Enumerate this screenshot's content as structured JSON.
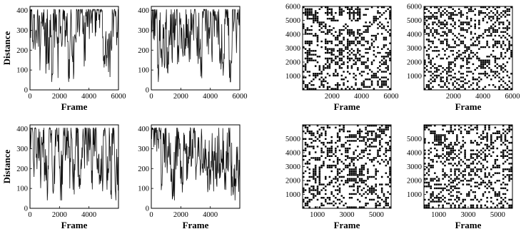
{
  "chart_data": [
    {
      "type": "line",
      "xlabel": "Frame",
      "ylabel": "Distance",
      "xlim": [
        0,
        6000
      ],
      "ylim": [
        0,
        420
      ],
      "xticks": [
        0,
        2000,
        4000,
        6000
      ],
      "yticks": [
        0,
        100,
        200,
        300,
        400
      ],
      "series": [
        {
          "x": [
            0,
            100,
            200,
            300,
            400,
            500,
            600,
            700,
            800,
            900,
            1000,
            1100,
            1200,
            1300,
            1400,
            1500,
            1600,
            1700,
            1800,
            1900,
            2000,
            2100,
            2200,
            2300,
            2400,
            2500,
            2600,
            2700,
            2800,
            2900,
            3000,
            3100,
            3200,
            3300,
            3400,
            3500,
            3600,
            3700,
            3800,
            3900,
            4000,
            4100,
            4200,
            4300,
            4400,
            4500,
            4600,
            4700,
            4800,
            4900,
            5000,
            5100,
            5200,
            5300,
            5400,
            5500,
            5600,
            5700,
            5800,
            5900,
            6000
          ],
          "values": [
            400,
            395,
            250,
            380,
            300,
            395,
            340,
            200,
            390,
            390,
            220,
            160,
            330,
            100,
            380,
            80,
            300,
            340,
            380,
            60,
            390,
            320,
            260,
            400,
            300,
            340,
            70,
            200,
            380,
            140,
            220,
            260,
            395,
            400,
            400,
            390,
            280,
            200,
            370,
            395,
            395,
            400,
            400,
            398,
            395,
            390,
            400,
            380,
            390,
            400,
            170,
            190,
            175,
            170,
            180,
            230,
            390,
            400,
            398,
            290,
            395
          ]
        }
      ]
    },
    {
      "type": "line",
      "xlabel": "",
      "ylabel": "",
      "xlim": [
        0,
        6000
      ],
      "ylim": [
        0,
        420
      ],
      "xticks": [
        0,
        2000,
        4000,
        6000
      ],
      "yticks": [
        0,
        100,
        200,
        300,
        400
      ],
      "series": [
        {
          "x": [
            0,
            100,
            200,
            300,
            400,
            500,
            600,
            700,
            800,
            900,
            1000,
            1100,
            1200,
            1300,
            1400,
            1500,
            1600,
            1700,
            1800,
            1900,
            2000,
            2100,
            2200,
            2300,
            2400,
            2500,
            2600,
            2700,
            2800,
            2900,
            3000,
            3100,
            3200,
            3300,
            3400,
            3500,
            3600,
            3700,
            3800,
            3900,
            4000,
            4100,
            4200,
            4300,
            4400,
            4500,
            4600,
            4700,
            4800,
            4900,
            5000,
            5100,
            5200,
            5300,
            5400,
            5500,
            5600,
            5700,
            5800,
            5900,
            6000
          ],
          "values": [
            395,
            400,
            250,
            380,
            300,
            80,
            390,
            200,
            330,
            110,
            360,
            90,
            300,
            380,
            160,
            390,
            250,
            395,
            210,
            300,
            360,
            200,
            330,
            260,
            380,
            240,
            270,
            300,
            340,
            380,
            390,
            170,
            300,
            210,
            100,
            395,
            400,
            340,
            240,
            300,
            395,
            180,
            390,
            395,
            380,
            395,
            300,
            210,
            160,
            120,
            330,
            395,
            390,
            60,
            130,
            400,
            330,
            395,
            300,
            390,
            385
          ]
        }
      ]
    },
    {
      "type": "line",
      "xlabel": "Frame",
      "ylabel": "Distance",
      "xlim": [
        0,
        6000
      ],
      "ylim": [
        0,
        420
      ],
      "xticks": [
        0,
        2000,
        4000
      ],
      "yticks": [
        0,
        100,
        200,
        300,
        400
      ],
      "series": [
        {
          "x": [
            0,
            100,
            200,
            300,
            400,
            500,
            600,
            700,
            800,
            900,
            1000,
            1100,
            1200,
            1300,
            1400,
            1500,
            1600,
            1700,
            1800,
            1900,
            2000,
            2100,
            2200,
            2300,
            2400,
            2500,
            2600,
            2700,
            2800,
            2900,
            3000,
            3100,
            3200,
            3300,
            3400,
            3500,
            3600,
            3700,
            3800,
            3900,
            4000,
            4100,
            4200,
            4300,
            4400,
            4500,
            4600,
            4700,
            4800,
            4900,
            5000,
            5100,
            5200,
            5300,
            5400,
            5500,
            5600,
            5700,
            5800,
            5900,
            6000
          ],
          "values": [
            410,
            390,
            380,
            260,
            400,
            310,
            400,
            200,
            360,
            395,
            230,
            140,
            80,
            400,
            330,
            220,
            90,
            300,
            400,
            370,
            200,
            150,
            120,
            380,
            240,
            360,
            390,
            100,
            380,
            160,
            70,
            310,
            380,
            210,
            150,
            220,
            400,
            200,
            400,
            300,
            400,
            400,
            190,
            320,
            400,
            380,
            200,
            120,
            250,
            160,
            395,
            390,
            150,
            200,
            360,
            90,
            400,
            390,
            80,
            180,
            200
          ]
        }
      ]
    },
    {
      "type": "line",
      "xlabel": "Frame",
      "ylabel": "",
      "xlim": [
        0,
        6000
      ],
      "ylim": [
        0,
        420
      ],
      "xticks": [
        0,
        2000,
        4000
      ],
      "yticks": [
        0,
        100,
        200,
        300,
        400
      ],
      "series": [
        {
          "x": [
            0,
            100,
            200,
            300,
            400,
            500,
            600,
            700,
            800,
            900,
            1000,
            1100,
            1200,
            1300,
            1400,
            1500,
            1600,
            1700,
            1800,
            1900,
            2000,
            2100,
            2200,
            2300,
            2400,
            2500,
            2600,
            2700,
            2800,
            2900,
            3000,
            3100,
            3200,
            3300,
            3400,
            3500,
            3600,
            3700,
            3800,
            3900,
            4000,
            4100,
            4200,
            4300,
            4400,
            4500,
            4600,
            4700,
            4800,
            4900,
            5000,
            5100,
            5200,
            5300,
            5400,
            5500,
            5600,
            5700,
            5800,
            5900,
            6000
          ],
          "values": [
            410,
            395,
            390,
            380,
            395,
            300,
            390,
            120,
            380,
            230,
            400,
            250,
            380,
            330,
            120,
            60,
            200,
            310,
            390,
            350,
            240,
            80,
            380,
            300,
            140,
            260,
            390,
            210,
            250,
            390,
            230,
            230,
            260,
            240,
            400,
            180,
            200,
            300,
            210,
            200,
            190,
            270,
            220,
            240,
            280,
            200,
            310,
            180,
            250,
            340,
            180,
            200,
            280,
            310,
            210,
            160,
            200,
            150,
            190,
            150,
            140
          ]
        }
      ]
    },
    {
      "type": "heatmap",
      "xlabel": "Frame",
      "ylabel": "",
      "xlim": [
        0,
        6000
      ],
      "ylim": [
        0,
        6000
      ],
      "xticks": [
        2000,
        4000,
        6000
      ],
      "yticks": [
        1000,
        2000,
        3000,
        4000,
        5000,
        6000
      ]
    },
    {
      "type": "heatmap",
      "xlabel": "Frame",
      "ylabel": "",
      "xlim": [
        0,
        6000
      ],
      "ylim": [
        0,
        6000
      ],
      "xticks": [
        2000,
        4000,
        6000
      ],
      "yticks": [
        1000,
        2000,
        3000,
        4000,
        5000,
        6000
      ]
    },
    {
      "type": "heatmap",
      "xlabel": "Frame",
      "ylabel": "",
      "xlim": [
        0,
        6000
      ],
      "ylim": [
        0,
        6000
      ],
      "xticks": [
        1000,
        3000,
        5000
      ],
      "yticks": [
        1000,
        2000,
        3000,
        4000,
        5000
      ]
    },
    {
      "type": "heatmap",
      "xlabel": "Frame",
      "ylabel": "",
      "xlim": [
        0,
        6000
      ],
      "ylim": [
        0,
        6000
      ],
      "xticks": [
        1000,
        3000,
        5000
      ],
      "yticks": [
        1000,
        2000,
        3000,
        4000,
        5000
      ]
    }
  ]
}
